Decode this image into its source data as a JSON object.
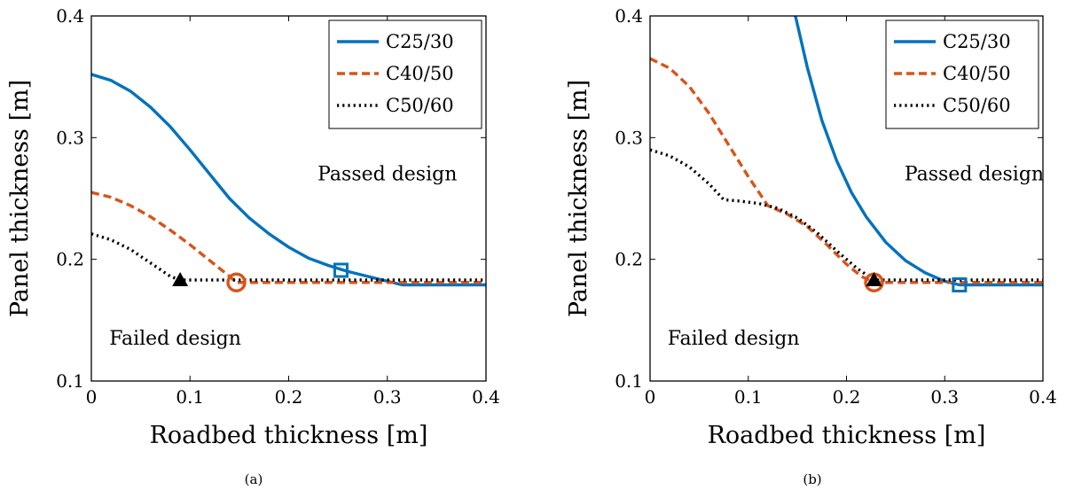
{
  "chart_data": [
    {
      "type": "line",
      "caption": "(a)",
      "xlabel": "Roadbed thickness [m]",
      "ylabel": "Panel thickness [m]",
      "xlim": [
        0,
        0.4
      ],
      "ylim": [
        0.1,
        0.4
      ],
      "xticks": [
        "0",
        "0.1",
        "0.2",
        "0.3",
        "0.4"
      ],
      "yticks": [
        "0.1",
        "0.2",
        "0.3",
        "0.4"
      ],
      "legend_position": "top-right",
      "annotations": [
        {
          "text": "Passed design",
          "x": 0.3,
          "y": 0.27
        },
        {
          "text": "Failed design",
          "x": 0.085,
          "y": 0.135
        }
      ],
      "series": [
        {
          "name": "C25/30",
          "color": "#0072BD",
          "style": "solid",
          "x": [
            0,
            0.02,
            0.04,
            0.06,
            0.08,
            0.1,
            0.12,
            0.14,
            0.16,
            0.18,
            0.2,
            0.22,
            0.24,
            0.26,
            0.28,
            0.3,
            0.315,
            0.34,
            0.37,
            0.4
          ],
          "y": [
            0.352,
            0.347,
            0.338,
            0.325,
            0.309,
            0.29,
            0.27,
            0.25,
            0.234,
            0.221,
            0.21,
            0.201,
            0.195,
            0.19,
            0.186,
            0.182,
            0.179,
            0.179,
            0.179,
            0.179
          ],
          "marker": {
            "shape": "square",
            "x": 0.253,
            "y": 0.191
          }
        },
        {
          "name": "C40/50",
          "color": "#D95319",
          "style": "dashed",
          "x": [
            0,
            0.02,
            0.04,
            0.06,
            0.08,
            0.1,
            0.12,
            0.14,
            0.147,
            0.2,
            0.25,
            0.3,
            0.35,
            0.4
          ],
          "y": [
            0.255,
            0.251,
            0.244,
            0.235,
            0.224,
            0.212,
            0.199,
            0.186,
            0.181,
            0.181,
            0.181,
            0.181,
            0.181,
            0.181
          ],
          "marker": {
            "shape": "circle",
            "x": 0.147,
            "y": 0.181
          }
        },
        {
          "name": "C50/60",
          "color": "#000000",
          "style": "dotted",
          "x": [
            0,
            0.02,
            0.04,
            0.06,
            0.08,
            0.09,
            0.15,
            0.2,
            0.25,
            0.3,
            0.35,
            0.4
          ],
          "y": [
            0.221,
            0.216,
            0.208,
            0.197,
            0.186,
            0.183,
            0.183,
            0.183,
            0.183,
            0.183,
            0.183,
            0.183
          ],
          "marker": {
            "shape": "triangle",
            "x": 0.09,
            "y": 0.183
          }
        }
      ]
    },
    {
      "type": "line",
      "caption": "(b)",
      "xlabel": "Roadbed thickness [m]",
      "ylabel": "Panel thickness [m]",
      "xlim": [
        0,
        0.4
      ],
      "ylim": [
        0.1,
        0.4
      ],
      "xticks": [
        "0",
        "0.1",
        "0.2",
        "0.3",
        "0.4"
      ],
      "yticks": [
        "0.1",
        "0.2",
        "0.3",
        "0.4"
      ],
      "legend_position": "top-right",
      "annotations": [
        {
          "text": "Passed design",
          "x": 0.33,
          "y": 0.27
        },
        {
          "text": "Failed design",
          "x": 0.085,
          "y": 0.135
        }
      ],
      "series": [
        {
          "name": "C25/30",
          "color": "#0072BD",
          "style": "solid",
          "x": [
            0.148,
            0.16,
            0.175,
            0.19,
            0.205,
            0.22,
            0.24,
            0.26,
            0.28,
            0.3,
            0.315,
            0.35,
            0.4
          ],
          "y": [
            0.4,
            0.358,
            0.314,
            0.281,
            0.255,
            0.235,
            0.214,
            0.199,
            0.189,
            0.182,
            0.179,
            0.179,
            0.179
          ],
          "marker": {
            "shape": "square",
            "x": 0.315,
            "y": 0.179
          }
        },
        {
          "name": "C40/50",
          "color": "#D95319",
          "style": "dashed",
          "x": [
            0,
            0.02,
            0.04,
            0.06,
            0.08,
            0.1,
            0.12,
            0.14,
            0.16,
            0.18,
            0.2,
            0.215,
            0.228,
            0.26,
            0.3,
            0.35,
            0.4
          ],
          "y": [
            0.365,
            0.357,
            0.342,
            0.32,
            0.294,
            0.268,
            0.244,
            0.237,
            0.227,
            0.212,
            0.196,
            0.186,
            0.181,
            0.181,
            0.181,
            0.181,
            0.181
          ],
          "marker": {
            "shape": "circle",
            "x": 0.228,
            "y": 0.181
          }
        },
        {
          "name": "C50/60",
          "color": "#000000",
          "style": "dotted",
          "x": [
            0,
            0.02,
            0.04,
            0.06,
            0.075,
            0.09,
            0.11,
            0.13,
            0.15,
            0.17,
            0.19,
            0.21,
            0.228,
            0.26,
            0.3,
            0.35,
            0.4
          ],
          "y": [
            0.29,
            0.285,
            0.276,
            0.262,
            0.249,
            0.248,
            0.246,
            0.242,
            0.234,
            0.222,
            0.207,
            0.193,
            0.183,
            0.183,
            0.183,
            0.183,
            0.183
          ],
          "marker": {
            "shape": "triangle",
            "x": 0.228,
            "y": 0.183
          }
        }
      ]
    }
  ]
}
